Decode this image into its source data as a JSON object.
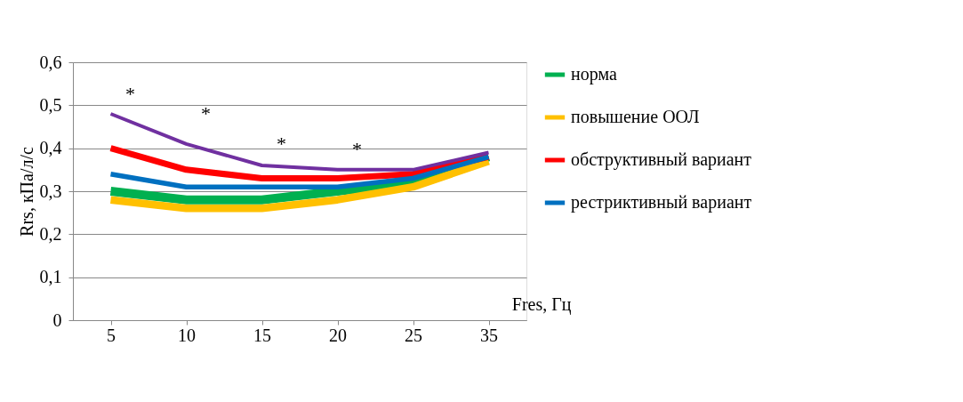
{
  "chart_data": {
    "type": "line",
    "xlabel": "Fres, Гц",
    "ylabel": "Rrs, кПа/л/с",
    "categories": [
      "5",
      "10",
      "15",
      "20",
      "25",
      "35"
    ],
    "series": [
      {
        "name": "норма",
        "color": "#00b050",
        "values": [
          0.3,
          0.28,
          0.28,
          0.3,
          0.32,
          0.38
        ]
      },
      {
        "name": "повышение ООЛ",
        "color": "#ffc000",
        "values": [
          0.28,
          0.26,
          0.26,
          0.28,
          0.31,
          0.37
        ]
      },
      {
        "name": "обструктивный вариант",
        "color": "#ff0000",
        "values": [
          0.4,
          0.35,
          0.33,
          0.33,
          0.34,
          0.38
        ]
      },
      {
        "name": "рестриктивный вариант",
        "color": "#0070c0",
        "values": [
          0.34,
          0.31,
          0.31,
          0.31,
          0.33,
          0.38
        ]
      },
      {
        "color": "#7030a0",
        "values": [
          0.48,
          0.41,
          0.36,
          0.35,
          0.35,
          0.39
        ]
      }
    ],
    "ylim": [
      0,
      0.6
    ],
    "yticks": [
      {
        "value": 0,
        "label": "0"
      },
      {
        "value": 0.1,
        "label": "0,1"
      },
      {
        "value": 0.2,
        "label": "0,2"
      },
      {
        "value": 0.3,
        "label": "0,3"
      },
      {
        "value": 0.4,
        "label": "0,4"
      },
      {
        "value": 0.5,
        "label": "0,5"
      },
      {
        "value": 0.6,
        "label": "0,6"
      }
    ],
    "grid": "y",
    "legend": "right",
    "marker": "none",
    "line_style": "solid",
    "annotations": [
      "*",
      "*",
      "*",
      "*"
    ]
  }
}
